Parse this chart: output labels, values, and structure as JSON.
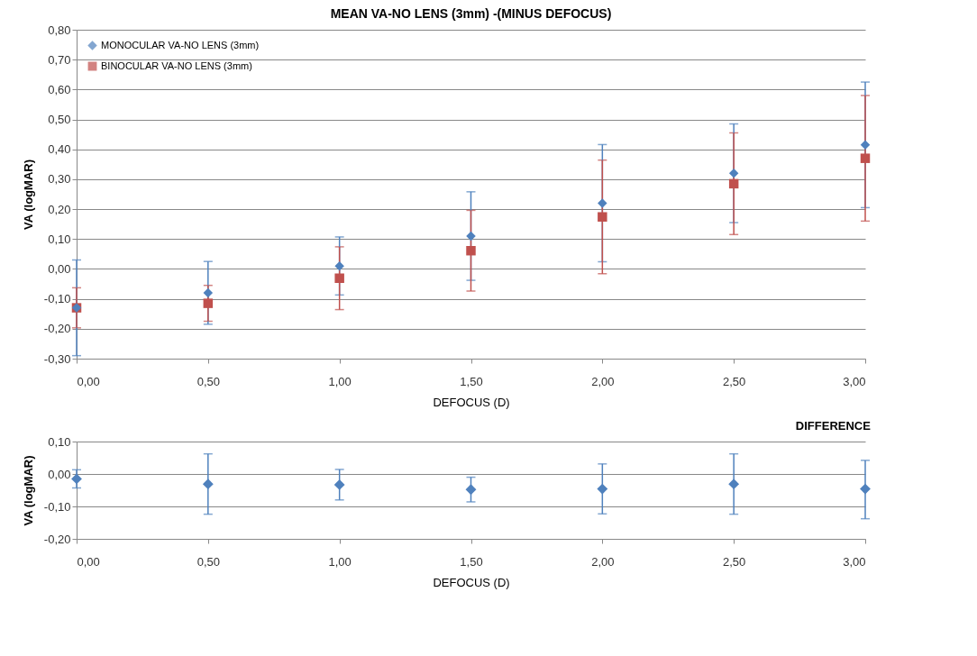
{
  "chart_data": [
    {
      "type": "scatter",
      "title": "MEAN  VA-NO LENS (3mm) -(MINUS DEFOCUS)",
      "xlabel": "DEFOCUS (D)",
      "ylabel": "VA (logMAR)",
      "x": [
        0,
        0.5,
        1,
        1.5,
        2,
        2.5,
        3
      ],
      "xlim": [
        0,
        3
      ],
      "xticks": [
        {
          "value": 0,
          "label": "0,00"
        },
        {
          "value": 0.5,
          "label": "0,50"
        },
        {
          "value": 1,
          "label": "1,00"
        },
        {
          "value": 1.5,
          "label": "1,50"
        },
        {
          "value": 2,
          "label": "2,00"
        },
        {
          "value": 2.5,
          "label": "2,50"
        },
        {
          "value": 3,
          "label": "3,00"
        }
      ],
      "ylim": [
        -0.3,
        0.8
      ],
      "yticks": [
        {
          "value": -0.3,
          "label": "-0,30"
        },
        {
          "value": -0.2,
          "label": "-0,20"
        },
        {
          "value": -0.1,
          "label": "-0,10"
        },
        {
          "value": 0,
          "label": "0,00"
        },
        {
          "value": 0.1,
          "label": "0,10"
        },
        {
          "value": 0.2,
          "label": "0,20"
        },
        {
          "value": 0.3,
          "label": "0,30"
        },
        {
          "value": 0.4,
          "label": "0,40"
        },
        {
          "value": 0.5,
          "label": "0,50"
        },
        {
          "value": 0.6,
          "label": "0,60"
        },
        {
          "value": 0.7,
          "label": "0,70"
        },
        {
          "value": 0.8,
          "label": "0,80"
        }
      ],
      "grid": "y",
      "legend": "top left",
      "series": [
        {
          "name": "MONOCULAR VA-NO LENS (3mm)",
          "color": "#4f81bd",
          "marker": "diamond",
          "values": [
            -0.13,
            -0.08,
            0.01,
            0.11,
            0.22,
            0.32,
            0.415
          ],
          "errors": [
            0.16,
            0.105,
            0.097,
            0.148,
            0.196,
            0.165,
            0.21
          ]
        },
        {
          "name": "BINOCULAR VA-NO LENS (3mm)",
          "color": "#c0504d",
          "marker": "square",
          "values": [
            -0.13,
            -0.115,
            -0.031,
            0.061,
            0.174,
            0.285,
            0.37
          ],
          "errors": [
            0.067,
            0.06,
            0.105,
            0.135,
            0.19,
            0.17,
            0.21
          ]
        }
      ]
    },
    {
      "type": "scatter",
      "title": "DIFFERENCE",
      "xlabel": "DEFOCUS (D)",
      "ylabel": "VA (logMAR)",
      "x": [
        0,
        0.5,
        1,
        1.5,
        2,
        2.5,
        3
      ],
      "xlim": [
        0,
        3
      ],
      "xticks": [
        {
          "value": 0,
          "label": "0,00"
        },
        {
          "value": 0.5,
          "label": "0,50"
        },
        {
          "value": 1,
          "label": "1,00"
        },
        {
          "value": 1.5,
          "label": "1,50"
        },
        {
          "value": 2,
          "label": "2,00"
        },
        {
          "value": 2.5,
          "label": "2,50"
        },
        {
          "value": 3,
          "label": "3,00"
        }
      ],
      "ylim": [
        -0.2,
        0.1
      ],
      "yticks": [
        {
          "value": -0.2,
          "label": "-0,20"
        },
        {
          "value": -0.1,
          "label": "-0,10"
        },
        {
          "value": 0,
          "label": "0,00"
        },
        {
          "value": 0.1,
          "label": "0,10"
        }
      ],
      "grid": "y",
      "series": [
        {
          "color": "#4f81bd",
          "marker": "diamond",
          "values": [
            -0.015,
            -0.031,
            -0.033,
            -0.048,
            -0.046,
            -0.031,
            -0.046
          ],
          "errors": [
            0.028,
            0.093,
            0.047,
            0.038,
            0.077,
            0.093,
            [
              -0.138,
              0.042
            ]
          ]
        }
      ]
    }
  ]
}
